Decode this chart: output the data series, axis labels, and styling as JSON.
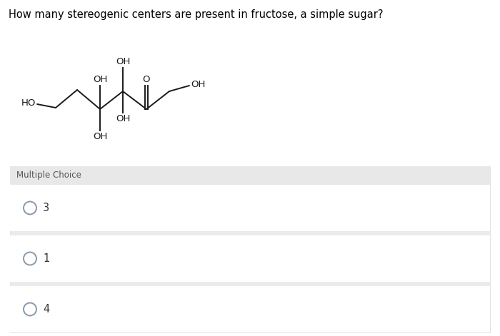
{
  "question_text": "How many stereogenic centers are present in fructose, a simple sugar?",
  "section_label": "Multiple Choice",
  "choices": [
    "3",
    "1",
    "4"
  ],
  "bg_color": "#f5f5f5",
  "white_bg": "#ffffff",
  "text_color": "#000000",
  "radio_color": "#8899aa",
  "fig_width": 7.0,
  "fig_height": 4.71,
  "dpi": 100,
  "mol_lw": 1.4,
  "mol_color": "#1a1a1a",
  "mol_fontsize": 9.5
}
